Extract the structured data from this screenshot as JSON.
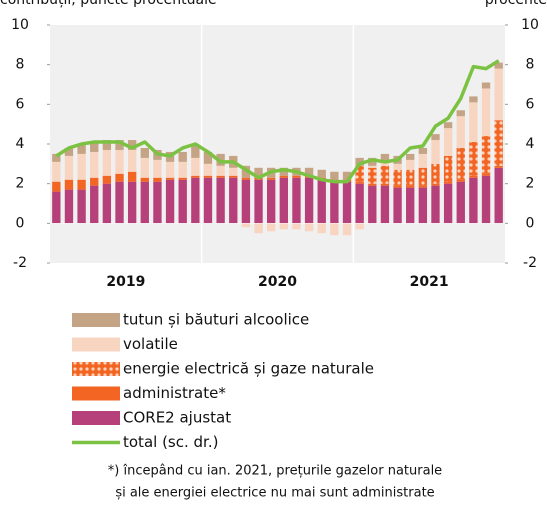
{
  "chart_data": {
    "type": "bar",
    "subtitle_left": "contribuții, puncte procentuale",
    "subtitle_right": "procente",
    "categories": [
      null,
      null,
      null,
      null,
      null,
      null,
      null,
      null,
      null,
      null,
      null,
      null,
      null,
      null,
      null,
      null,
      null,
      null,
      null,
      null,
      null,
      null,
      null,
      null,
      null,
      null,
      null,
      null,
      null,
      null,
      null,
      null,
      null,
      null,
      null,
      null
    ],
    "year_labels": [
      "2019",
      "2020",
      "2021"
    ],
    "stacked": true,
    "series": [
      {
        "name": "CORE2 ajustat",
        "color": "#b5407a",
        "values": [
          1.6,
          1.7,
          1.7,
          1.9,
          2.0,
          2.1,
          2.1,
          2.1,
          2.1,
          2.2,
          2.2,
          2.3,
          2.3,
          2.3,
          2.3,
          2.2,
          2.2,
          2.2,
          2.3,
          2.3,
          2.3,
          2.2,
          2.1,
          2.1,
          2.0,
          1.9,
          1.9,
          1.8,
          1.8,
          1.8,
          1.9,
          2.0,
          2.1,
          2.3,
          2.4,
          2.8
        ]
      },
      {
        "name": "administrate*",
        "color": "#f26522",
        "values": [
          0.5,
          0.5,
          0.5,
          0.4,
          0.4,
          0.4,
          0.5,
          0.2,
          0.2,
          0.1,
          0.1,
          0.1,
          0.1,
          0.1,
          0.1,
          0.1,
          0.1,
          0.1,
          0.1,
          0.1,
          0.1,
          0.1,
          0.1,
          0.1,
          0.1,
          0.1,
          0.1,
          0.1,
          0.1,
          0.1,
          0.1,
          0.1,
          0.1,
          0.1,
          0.1,
          0.1
        ]
      },
      {
        "name": "energie electrică și gaze naturale",
        "color": "#f26522",
        "pattern": "dots",
        "values": [
          0,
          0,
          0,
          0,
          0,
          0,
          0,
          0,
          0,
          0,
          0,
          0,
          0,
          0,
          0,
          0,
          0,
          0,
          0,
          0,
          0,
          0,
          0,
          0,
          0.8,
          0.8,
          0.9,
          0.8,
          0.8,
          0.9,
          1.0,
          1.3,
          1.6,
          1.7,
          1.9,
          2.3
        ]
      },
      {
        "name": "volatile",
        "color": "#f8d5c0",
        "values": [
          1.0,
          1.2,
          1.3,
          1.3,
          1.3,
          1.2,
          1.1,
          1.0,
          0.9,
          0.8,
          0.8,
          0.9,
          0.6,
          0.5,
          0.4,
          -0.2,
          -0.5,
          -0.4,
          -0.3,
          -0.3,
          -0.4,
          -0.5,
          -0.6,
          -0.6,
          -0.3,
          0.1,
          0.2,
          0.3,
          0.5,
          0.7,
          1.2,
          1.4,
          1.6,
          2.0,
          2.4,
          2.6
        ]
      },
      {
        "name": "tutun și băuturi alcoolice",
        "color": "#c4a484",
        "values": [
          0.4,
          0.4,
          0.5,
          0.5,
          0.5,
          0.5,
          0.5,
          0.5,
          0.5,
          0.5,
          0.5,
          0.6,
          0.6,
          0.6,
          0.6,
          0.6,
          0.5,
          0.5,
          0.4,
          0.4,
          0.4,
          0.4,
          0.4,
          0.4,
          0.4,
          0.4,
          0.4,
          0.4,
          0.3,
          0.3,
          0.3,
          0.3,
          0.3,
          0.3,
          0.3,
          0.3
        ]
      },
      {
        "name": "total (sc. dr.)",
        "color": "#7cc242",
        "type": "line",
        "axis": "y2",
        "values": [
          3.4,
          3.8,
          4.0,
          4.1,
          4.1,
          4.1,
          3.8,
          4.1,
          3.5,
          3.4,
          3.8,
          4.0,
          3.6,
          3.1,
          3.1,
          2.7,
          2.3,
          2.6,
          2.7,
          2.6,
          2.4,
          2.2,
          2.1,
          2.1,
          3.0,
          3.2,
          3.1,
          3.2,
          3.8,
          3.9,
          4.9,
          5.3,
          6.3,
          7.9,
          7.8,
          8.2
        ]
      }
    ],
    "ylim": [
      -2,
      10
    ],
    "yticks": [
      -2,
      0,
      2,
      4,
      6,
      8,
      10
    ],
    "y2lim": [
      -2,
      10
    ],
    "y2ticks": [
      -2,
      0,
      2,
      4,
      6,
      8,
      10
    ],
    "footnote": [
      "*) începând cu ian. 2021, prețurile gazelor naturale",
      "și ale energiei electrice nu mai sunt administrate"
    ]
  }
}
